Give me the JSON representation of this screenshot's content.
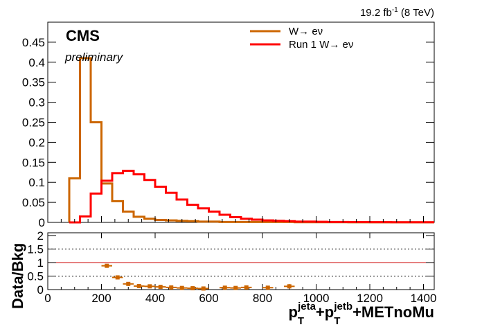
{
  "header": {
    "lumi_value": "19.2 fb",
    "lumi_exp": "-1",
    "lumi_energy": " (8 TeV)",
    "cms_label": "CMS",
    "prelim_label": "preliminary"
  },
  "axis": {
    "ratio_ylabel": "Data/Bkg",
    "xlabel_main": "p",
    "xlabel_sub": "T",
    "xlabel_sup_a": "jeta",
    "xlabel_plus": "+p",
    "xlabel_sup_b": "jetb",
    "xlabel_tail": "+METnoMu"
  },
  "colors": {
    "series1": "#cc6600",
    "series2": "#ff0000",
    "ratio_line": "#cc0000"
  },
  "chart_data": [
    {
      "type": "line",
      "subtype": "step-histogram",
      "xlim": [
        0,
        1440
      ],
      "ylim": [
        0,
        0.5
      ],
      "yticks": [
        0,
        0.05,
        0.1,
        0.15,
        0.2,
        0.25,
        0.3,
        0.35,
        0.4,
        0.45
      ],
      "ytick_labels": [
        "0",
        "0.05",
        "0.1",
        "0.15",
        "0.2",
        "0.25",
        "0.3",
        "0.35",
        "0.4",
        "0.45"
      ],
      "legend_position": "top-right",
      "bin_edges": [
        80,
        120,
        160,
        200,
        240,
        280,
        320,
        360,
        400,
        440,
        480,
        520,
        560,
        600,
        640,
        680,
        720,
        760,
        800,
        840,
        880,
        920,
        960,
        1000,
        1040,
        1080,
        1120,
        1160,
        1200,
        1240,
        1280,
        1320,
        1360,
        1400,
        1440
      ],
      "series": [
        {
          "name": "W→ eν",
          "values": [
            0.11,
            0.41,
            0.25,
            0.097,
            0.053,
            0.027,
            0.014,
            0.009,
            0.006,
            0.005,
            0.004,
            0.003,
            0.002,
            0.002,
            0.001,
            0.001,
            0.001,
            0.001,
            0.001,
            0.001,
            0.001,
            0.0005,
            0.0005,
            0.0005,
            0.0005,
            0.0005,
            0.0003,
            0.0003,
            0.0003,
            0.0003,
            0.0002,
            0.0002,
            0.0002,
            0.0002
          ]
        },
        {
          "name": "Run 1 W→ eν",
          "values": [
            0,
            0.015,
            0.072,
            0.104,
            0.123,
            0.129,
            0.12,
            0.106,
            0.089,
            0.074,
            0.057,
            0.044,
            0.035,
            0.027,
            0.019,
            0.013,
            0.009,
            0.007,
            0.005,
            0.004,
            0.003,
            0.002,
            0.002,
            0.0015,
            0.001,
            0.001,
            0.0008,
            0.0008,
            0.0006,
            0.0006,
            0.0005,
            0.0005,
            0.0004,
            0.0004
          ]
        }
      ]
    },
    {
      "type": "scatter",
      "ylabel": "Data/Bkg",
      "xlim": [
        0,
        1440
      ],
      "ylim": [
        0,
        2.1
      ],
      "yticks": [
        0,
        0.5,
        1,
        1.5,
        2
      ],
      "ytick_labels": [
        "0",
        "0.5",
        "1",
        "1.5",
        "2"
      ],
      "xticks": [
        0,
        200,
        400,
        600,
        800,
        1000,
        1200,
        1400
      ],
      "xtick_labels": [
        "0",
        "200",
        "400",
        "600",
        "800",
        "1000",
        "1200",
        "1400"
      ],
      "reference_lines": [
        0.5,
        1,
        1.5
      ],
      "points": [
        {
          "x": 220,
          "y": 0.88,
          "xerr": 20,
          "yerr": 0.04
        },
        {
          "x": 260,
          "y": 0.45,
          "xerr": 20,
          "yerr": 0.03
        },
        {
          "x": 300,
          "y": 0.21,
          "xerr": 20,
          "yerr": 0.03
        },
        {
          "x": 340,
          "y": 0.13,
          "xerr": 20,
          "yerr": 0.02
        },
        {
          "x": 380,
          "y": 0.12,
          "xerr": 20,
          "yerr": 0.02
        },
        {
          "x": 420,
          "y": 0.1,
          "xerr": 20,
          "yerr": 0.02
        },
        {
          "x": 460,
          "y": 0.08,
          "xerr": 20,
          "yerr": 0.02
        },
        {
          "x": 500,
          "y": 0.06,
          "xerr": 20,
          "yerr": 0.02
        },
        {
          "x": 540,
          "y": 0.05,
          "xerr": 20,
          "yerr": 0.02
        },
        {
          "x": 580,
          "y": 0.04,
          "xerr": 20,
          "yerr": 0.02
        },
        {
          "x": 660,
          "y": 0.07,
          "xerr": 20,
          "yerr": 0.03
        },
        {
          "x": 700,
          "y": 0.06,
          "xerr": 20,
          "yerr": 0.03
        },
        {
          "x": 740,
          "y": 0.08,
          "xerr": 20,
          "yerr": 0.03
        },
        {
          "x": 820,
          "y": 0.07,
          "xerr": 20,
          "yerr": 0.04
        },
        {
          "x": 900,
          "y": 0.12,
          "xerr": 20,
          "yerr": 0.08
        }
      ]
    }
  ]
}
